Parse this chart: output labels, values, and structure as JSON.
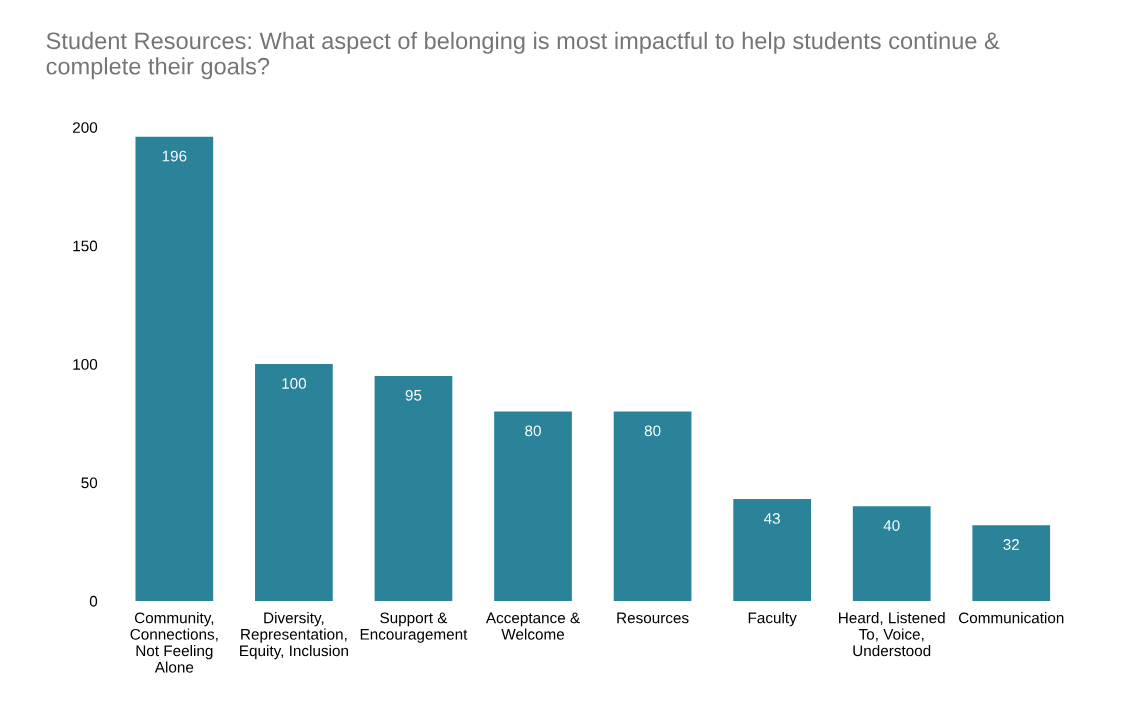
{
  "chart_data": {
    "type": "bar",
    "title": "Student Resources: What aspect of belonging is most impactful to help students continue &\ncomplete their goals?",
    "categories": [
      "Community,\nConnections,\nNot Feeling\nAlone",
      "Diversity,\nRepresentation,\nEquity, Inclusion",
      "Support &\nEncouragement",
      "Acceptance &\nWelcome",
      "Resources",
      "Faculty",
      "Heard, Listened\nTo, Voice,\nUnderstood",
      "Communication"
    ],
    "values": [
      196,
      100,
      95,
      80,
      80,
      43,
      40,
      32
    ],
    "color": "#2a8399",
    "ylim": [
      0,
      200
    ],
    "yticks": [
      0,
      50,
      100,
      150,
      200
    ],
    "data_labels": true,
    "grid": false,
    "legend": false
  }
}
